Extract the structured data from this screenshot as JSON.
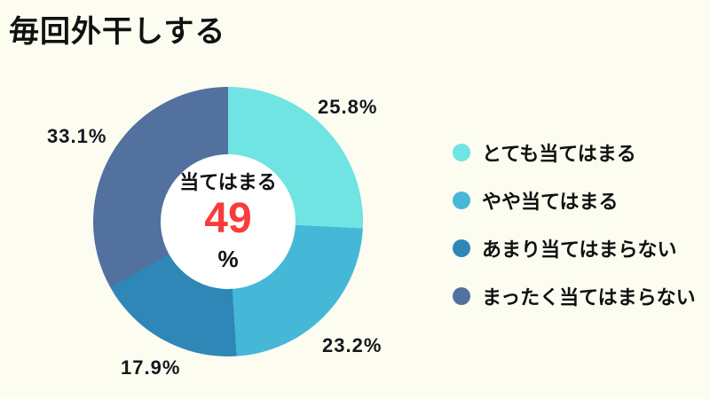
{
  "page": {
    "background_color": "#FCFCF1",
    "title": "毎回外干しする"
  },
  "chart_data": {
    "type": "pie",
    "subtype": "donut",
    "title": "毎回外干しする",
    "start_angle_deg": 0,
    "direction": "clockwise",
    "legend_position": "right",
    "center_label": {
      "text": "当てはまる",
      "value": "49",
      "unit": "%",
      "value_color": "#FA3B3B"
    },
    "segments": [
      {
        "label": "とても当てはまる",
        "value": 25.8,
        "display": "25.8%",
        "color": "#70E3E3"
      },
      {
        "label": "やや当てはまる",
        "value": 23.2,
        "display": "23.2%",
        "color": "#45B8D8"
      },
      {
        "label": "あまり当てはまらない",
        "value": 17.9,
        "display": "17.9%",
        "color": "#2E87B7"
      },
      {
        "label": "まったく当てはまらない",
        "value": 33.1,
        "display": "33.1%",
        "color": "#52719F"
      }
    ]
  }
}
